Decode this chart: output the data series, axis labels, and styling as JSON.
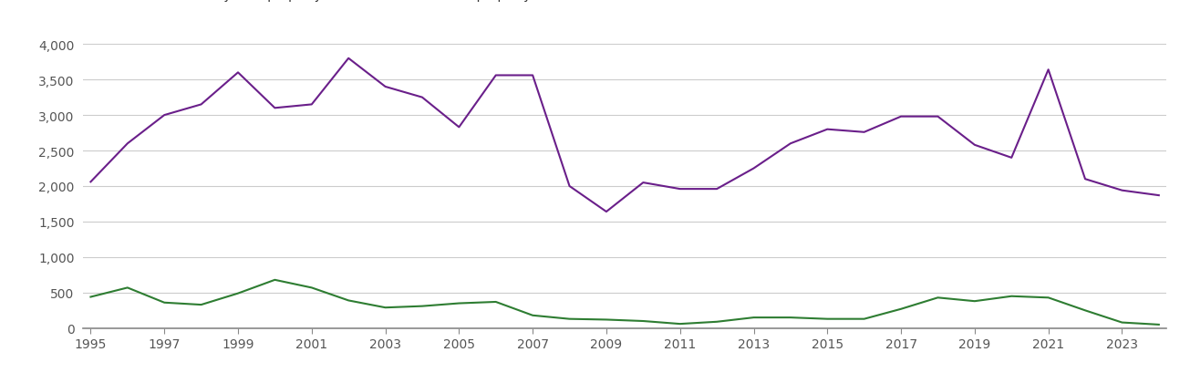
{
  "years": [
    1995,
    1996,
    1997,
    1998,
    1999,
    2000,
    2001,
    2002,
    2003,
    2004,
    2005,
    2006,
    2007,
    2008,
    2009,
    2010,
    2011,
    2012,
    2013,
    2014,
    2015,
    2016,
    2017,
    2018,
    2019,
    2020,
    2021,
    2022,
    2023,
    2024
  ],
  "new_builds": [
    440,
    570,
    360,
    330,
    490,
    680,
    570,
    390,
    290,
    310,
    350,
    370,
    180,
    130,
    120,
    100,
    60,
    90,
    150,
    150,
    130,
    130,
    270,
    430,
    380,
    450,
    430,
    250,
    80,
    50
  ],
  "established": [
    2060,
    2600,
    3000,
    3150,
    3600,
    3100,
    3150,
    3800,
    3400,
    3250,
    2830,
    3560,
    3560,
    2000,
    1640,
    2050,
    1960,
    1960,
    2250,
    2600,
    2800,
    2760,
    2980,
    2980,
    2580,
    2400,
    3640,
    2100,
    1940,
    1870
  ],
  "new_color": "#2e7d32",
  "established_color": "#6a1f8a",
  "ylim": [
    0,
    4000
  ],
  "yticks": [
    0,
    500,
    1000,
    1500,
    2000,
    2500,
    3000,
    3500,
    4000
  ],
  "xtick_years": [
    1995,
    1997,
    1999,
    2001,
    2003,
    2005,
    2007,
    2009,
    2011,
    2013,
    2015,
    2017,
    2019,
    2021,
    2023
  ],
  "background_color": "#ffffff",
  "grid_color": "#cccccc",
  "legend_fontsize": 10,
  "axis_fontsize": 10,
  "title": ""
}
